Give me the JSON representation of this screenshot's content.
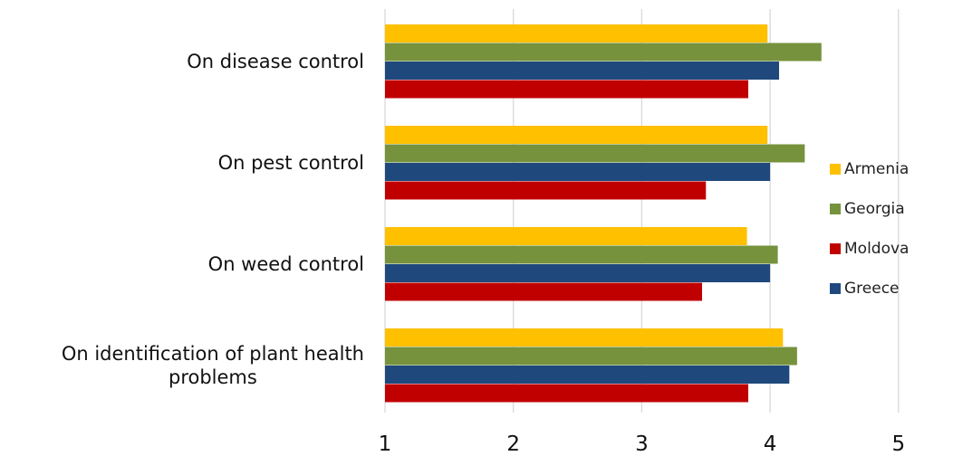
{
  "chart_data": {
    "type": "bar",
    "orientation": "horizontal",
    "categories": [
      "On disease control",
      "On pest control",
      "On weed control",
      "On identification of plant health problems"
    ],
    "category_lines": [
      [
        "On disease control"
      ],
      [
        "On pest control"
      ],
      [
        "On weed control"
      ],
      [
        "On identification of plant health",
        "problems"
      ]
    ],
    "series": [
      {
        "name": "Armenia",
        "color": "#ffc000",
        "values": [
          3.98,
          3.98,
          3.82,
          4.1
        ]
      },
      {
        "name": "Georgia",
        "color": "#76923c",
        "values": [
          4.4,
          4.27,
          4.06,
          4.21
        ]
      },
      {
        "name": "Greece",
        "color": "#1f497d",
        "values": [
          4.07,
          4.0,
          4.0,
          4.15
        ]
      },
      {
        "name": "Moldova",
        "color": "#c00000",
        "values": [
          3.83,
          3.5,
          3.47,
          3.83
        ]
      }
    ],
    "legend_order": [
      "Armenia",
      "Georgia",
      "Moldova",
      "Greece"
    ],
    "xlim": [
      1,
      5.3
    ],
    "xticks": [
      "1",
      "2",
      "3",
      "4",
      "5"
    ],
    "grid": true,
    "legend_position": "right",
    "title": "",
    "xlabel": "",
    "ylabel": ""
  }
}
